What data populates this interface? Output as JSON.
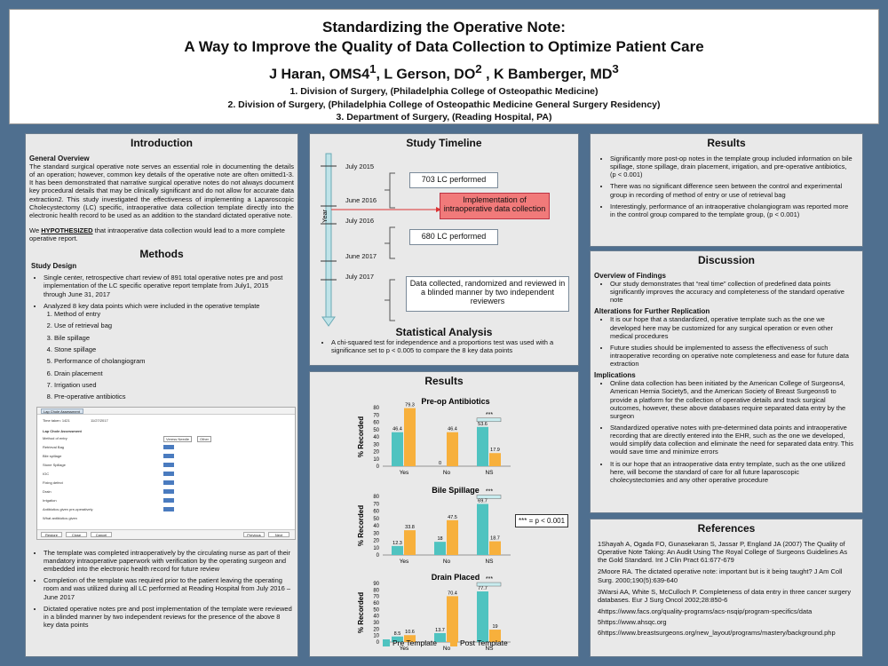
{
  "header": {
    "title_line1": "Standardizing the Operative Note:",
    "title_line2": "A Way to Improve the Quality of Data Collection to Optimize Patient Care",
    "authors": [
      {
        "name": "J Haran, OMS4",
        "sup": "1"
      },
      {
        "name": "L Gerson, DO",
        "sup": "2"
      },
      {
        "name": "K Bamberger, MD",
        "sup": "3"
      }
    ],
    "affiliations": [
      "1.   Division of Surgery, (Philadelphia College of Osteopathic Medicine)",
      "2.   Division of Surgery, (Philadelphia College of Osteopathic Medicine General Surgery Residency)",
      "3.     Department of Surgery, (Reading Hospital, PA)"
    ]
  },
  "intro": {
    "title": "Introduction",
    "overview_heading": "General Overview",
    "overview_text": "The standard surgical operative note serves an essential role in documenting the details of an operation; however, common key details of the operative note are often omitted1-3. It has been demonstrated that narrative surgical operative notes do not always document key procedural details that may be clinically significant and do not allow for accurate data extraction2. This study investigated the effectiveness of implementing a Laparoscopic Cholecystectomy (LC) specific, intraoperative data collection template directly into the electronic health record to be used as an addition to the standard dictated operative note.",
    "hyp_prefix": "We ",
    "hyp_word": "HYPOTHESIZED",
    "hyp_suffix": " that intraoperative data collection would lead to a more complete operative report."
  },
  "methods": {
    "title": "Methods",
    "design_heading": "Study Design",
    "bullet1": "Single center, retrospective chart review of 891 total operative notes pre and post implementation of the LC specific operative report template from July1, 2015 through June 31, 2017",
    "bullet2": "Analyzed 8 key data points which were included in the operative template",
    "points": [
      "Method of entry",
      "Use of retrieval bag",
      "Bile spillage",
      "Stone spillage",
      "Performance of cholangiogram",
      "Drain placement",
      "Irrigation used",
      "Pre-operative antibiotics"
    ],
    "screenshot": {
      "tab": "Lap Chole Assessment",
      "time_label": "Time taken: 1421",
      "date": "11/27/2017",
      "section": "Lap Chole Assessment",
      "rows": [
        "Method of entry",
        "Retrieval Bag",
        "Bile spillage",
        "Stone Spillage",
        "IOC",
        "Fixing defect",
        "Drain",
        "Irrigation",
        "Antibiotics given pre-operatively",
        "What antibiotics given"
      ],
      "choice1": "Veress Needle",
      "choice2": "Other",
      "buttons": [
        "Restore",
        "Close",
        "Cancel",
        "Previous",
        "Next"
      ]
    },
    "bullets_after": [
      "The template was completed intraoperatively by the circulating nurse as part of their mandatory intraoperative paperwork with verification by the operating surgeon and embedded into the electronic health record for future review",
      "Completion of the template was required prior to the patient leaving the operating room and was utilized during all LC performed at Reading Hospital from July 2016 – June 2017",
      "Dictated operative notes pre and post implementation of the template were reviewed in a blinded manner by two independent reviews for the presence of the above 8 key data points"
    ]
  },
  "timeline": {
    "title": "Study Timeline",
    "axis_label": "Year",
    "dates": [
      "July 2015",
      "June 2016",
      "July 2016",
      "June 2017",
      "July 2017"
    ],
    "box1": "703 LC performed",
    "box2": "Implementation of intraoperative data collection",
    "box3": "680 LC performed",
    "box4": "Data collected, randomized and reviewed in a blinded manner by two independent reviewers"
  },
  "stats": {
    "title": "Statistical Analysis",
    "text": "A chi-squared test for independence and a proportions test was used with a significance set to p < 0.005 to compare the 8 key data points"
  },
  "results_center": {
    "title": "Results",
    "significance_note": "*** = p < 0.001",
    "legend": [
      "Pre Template",
      "Post Template"
    ],
    "colors": {
      "pre": "#4fc3c0",
      "post": "#f7b03c"
    }
  },
  "chart_data": [
    {
      "type": "bar",
      "title": "Pre-op Antibiotics",
      "ylabel": "% Recorded",
      "categories": [
        "Yes",
        "No",
        "NS"
      ],
      "ylim": [
        0,
        80
      ],
      "yticks": [
        0,
        10,
        20,
        30,
        40,
        50,
        60,
        70,
        80
      ],
      "series": [
        {
          "name": "Pre Template",
          "values": [
            46.4,
            0,
            53.6
          ]
        },
        {
          "name": "Post Template",
          "values": [
            79.3,
            46.4,
            17.9
          ]
        }
      ],
      "significance": "***"
    },
    {
      "type": "bar",
      "title": "Bile Spillage",
      "ylabel": "% Recorded",
      "categories": [
        "Yes",
        "No",
        "NS"
      ],
      "ylim": [
        0,
        80
      ],
      "yticks": [
        0,
        10,
        20,
        30,
        40,
        50,
        60,
        70,
        80
      ],
      "series": [
        {
          "name": "Pre Template",
          "values": [
            12.3,
            18,
            69.7
          ]
        },
        {
          "name": "Post Template",
          "values": [
            33.8,
            47.5,
            18.7
          ]
        }
      ],
      "significance": "***"
    },
    {
      "type": "bar",
      "title": "Drain Placed",
      "ylabel": "% Recorded",
      "categories": [
        "Yes",
        "No",
        "NS"
      ],
      "ylim": [
        0,
        90
      ],
      "yticks": [
        0,
        10,
        20,
        30,
        40,
        50,
        60,
        70,
        80,
        90
      ],
      "series": [
        {
          "name": "Pre Template",
          "values": [
            8.5,
            13.7,
            77.7
          ]
        },
        {
          "name": "Post Template",
          "values": [
            10.6,
            70.4,
            19
          ]
        }
      ],
      "significance": "***"
    }
  ],
  "results_right": {
    "title": "Results",
    "bullets": [
      "Significantly more post-op notes in the template group included information on bile spillage, stone spillage, drain placement, irrigation, and pre-operative antibiotics, (p < 0.001)",
      "There was no significant difference seen between the control and experimental group in recording of method of entry or use of retrieval bag",
      "Interestingly, performance of an intraoperative cholangiogram was reported more in the control group compared to the template group, (p < 0.001)"
    ]
  },
  "discussion": {
    "title": "Discussion",
    "h1": "Overview of Findings",
    "b1": [
      "Our study demonstrates that “real time” collection of predefined data points significantly improves the accuracy and completeness of the standard operative note"
    ],
    "h2": "Alterations for Further Replication",
    "b2": [
      "It is our hope that a standardized, operative template such as the one we developed here may be customized for any surgical operation or even other medical procedures",
      "Future studies should be implemented to assess the effectiveness of such intraoperative recording on operative note completeness and ease for future data extraction"
    ],
    "h3": "Implications",
    "b3": [
      "Online data collection has been initiated by the American College of Surgeons4, American Hernia Society5, and the American Society of Breast Surgeons6 to provide a platform for the collection of operative details and track surgical outcomes, however, these above databases require separated data entry by the surgeon",
      "Standardized operative notes with pre-determined data points and intraoperative recording that are directly entered into the EHR, such as the one we developed, would simplify data collection and eliminate the need for separated data entry. This would save time and minimize errors",
      "It is our hope that an intraoperative data entry template, such as the one utilized here, will become the standard of care for all future laparoscopic cholecystectomies and any other operative procedure"
    ]
  },
  "references": {
    "title": "References",
    "items": [
      "1Shayah A, Ogada FO, Gunasekaran S, Jassar P, England JA (2007) The Quality of Operative Note Taking: An Audit Using The Royal College of Surgeons Guidelines As the Gold Standard. Int J Clin Pract 61:677-679",
      "2Moore RA. The dictated operative note: important but is it being taught? J Am Coll Surg. 2000;190(5):639-640",
      "3Warsi AA, White S, McCulloch P. Completeness of data entry in three cancer surgery databases. Eur J Surg Oncol 2002;28:850-6",
      "4https://www.facs.org/quality-programs/acs-nsqip/program-specifics/data",
      "5https://www.ahsqc.org",
      "6https://www.breastsurgeons.org/new_layout/programs/mastery/background.php"
    ]
  }
}
